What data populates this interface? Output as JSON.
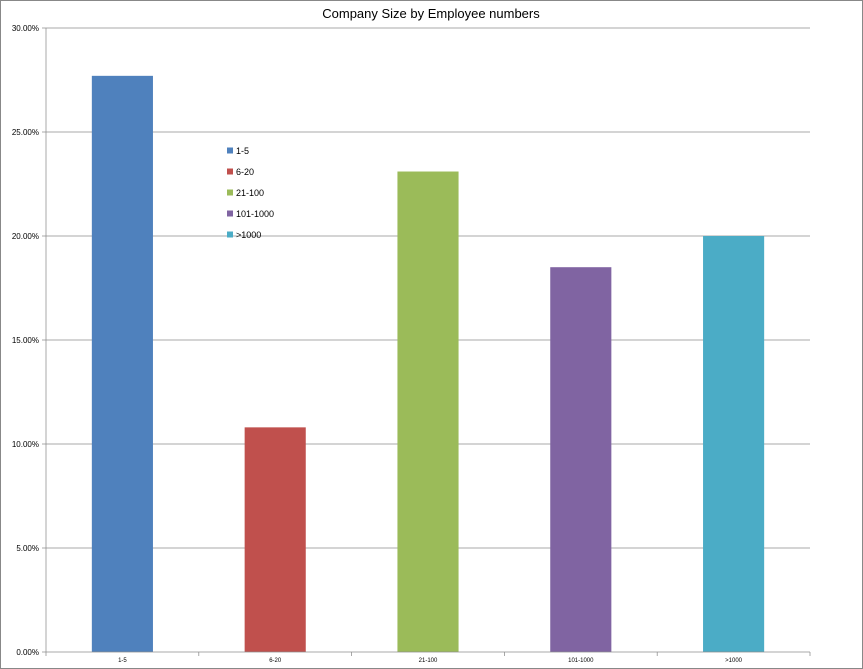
{
  "chart_data": {
    "type": "bar",
    "title": "Company Size by Employee numbers",
    "xlabel": "",
    "ylabel": "",
    "categories": [
      "1-5",
      "6-20",
      "21-100",
      "101-1000",
      ">1000"
    ],
    "values": [
      27.7,
      10.8,
      23.1,
      18.5,
      20.0
    ],
    "colors": [
      "#4f81bd",
      "#c0504d",
      "#9bbb59",
      "#8064a2",
      "#4bacc6"
    ],
    "ylim": [
      0,
      30
    ],
    "yticks": [
      0,
      5,
      10,
      15,
      20,
      25,
      30
    ],
    "ytick_labels": [
      "0.00%",
      "5.00%",
      "10.00%",
      "15.00%",
      "20.00%",
      "25.00%",
      "30.00%"
    ],
    "grid": true,
    "legend": {
      "placement": "inside-upper-left",
      "entries": [
        "1-5",
        "6-20",
        "21-100",
        "101-1000",
        ">1000"
      ]
    }
  }
}
